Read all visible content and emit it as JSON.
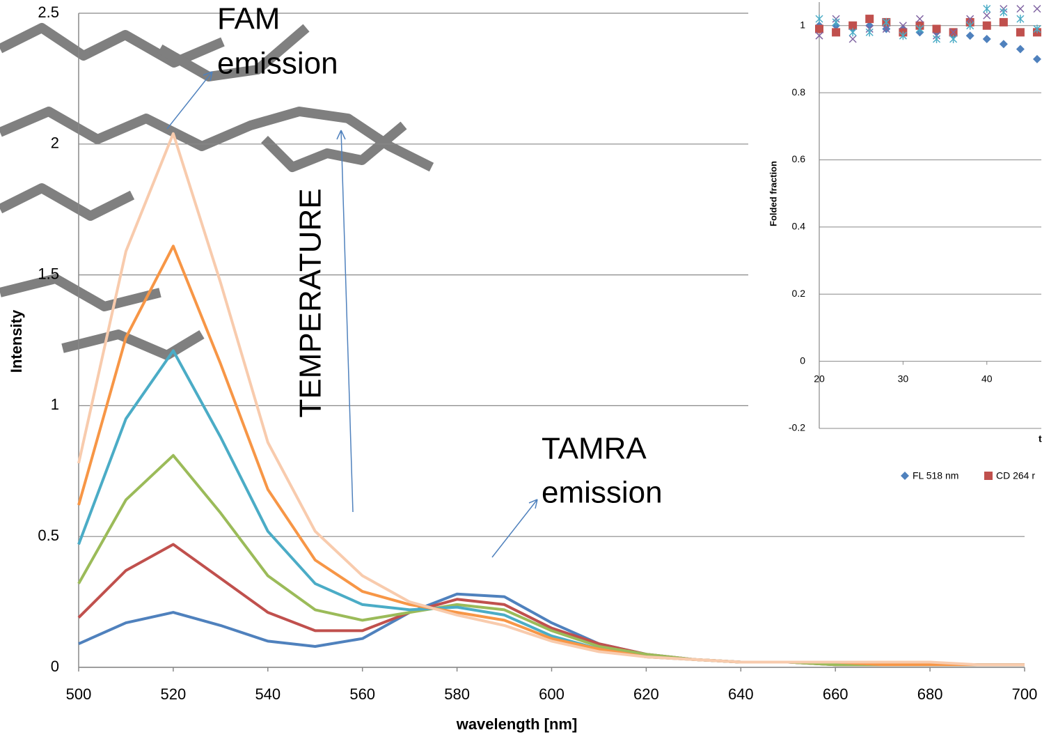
{
  "chart_data": [
    {
      "type": "line",
      "xlabel": "wavelength [nm]",
      "ylabel": "Intensity",
      "x": [
        500,
        510,
        520,
        530,
        540,
        550,
        560,
        570,
        580,
        590,
        600,
        610,
        620,
        630,
        640,
        650,
        660,
        670,
        680,
        690,
        700
      ],
      "series": [
        {
          "color": "#4f81bd",
          "values": [
            0.09,
            0.17,
            0.21,
            0.16,
            0.1,
            0.08,
            0.11,
            0.21,
            0.28,
            0.27,
            0.17,
            0.09,
            0.05,
            0.03,
            0.02,
            0.02,
            0.01,
            0.01,
            0.01,
            0.01,
            0.01
          ]
        },
        {
          "color": "#c0504d",
          "values": [
            0.19,
            0.37,
            0.47,
            0.34,
            0.21,
            0.14,
            0.14,
            0.21,
            0.26,
            0.24,
            0.15,
            0.09,
            0.05,
            0.03,
            0.02,
            0.02,
            0.01,
            0.01,
            0.01,
            0.01,
            0.01
          ]
        },
        {
          "color": "#9bbb59",
          "values": [
            0.32,
            0.64,
            0.81,
            0.59,
            0.35,
            0.22,
            0.18,
            0.21,
            0.24,
            0.22,
            0.14,
            0.08,
            0.05,
            0.03,
            0.02,
            0.02,
            0.01,
            0.01,
            0.01,
            0.01,
            0.01
          ]
        },
        {
          "color": "#4bacc6",
          "values": [
            0.47,
            0.95,
            1.21,
            0.88,
            0.52,
            0.32,
            0.24,
            0.22,
            0.23,
            0.2,
            0.12,
            0.07,
            0.04,
            0.03,
            0.02,
            0.02,
            0.02,
            0.01,
            0.01,
            0.01,
            0.01
          ]
        },
        {
          "color": "#f79646",
          "values": [
            0.62,
            1.26,
            1.61,
            1.16,
            0.68,
            0.41,
            0.29,
            0.24,
            0.21,
            0.18,
            0.11,
            0.07,
            0.04,
            0.03,
            0.02,
            0.02,
            0.02,
            0.01,
            0.01,
            0.01,
            0.01
          ]
        },
        {
          "color": "#f8cbad",
          "values": [
            0.78,
            1.59,
            2.04,
            1.47,
            0.86,
            0.52,
            0.35,
            0.25,
            0.2,
            0.16,
            0.1,
            0.06,
            0.04,
            0.03,
            0.02,
            0.02,
            0.02,
            0.02,
            0.02,
            0.01,
            0.01
          ]
        }
      ],
      "xlim": [
        500,
        700
      ],
      "xticks": [
        500,
        520,
        540,
        560,
        580,
        600,
        620,
        640,
        660,
        680,
        700
      ],
      "ylim": [
        0,
        2.5
      ],
      "yticks": [
        0,
        0.5,
        1,
        1.5,
        2,
        2.5
      ],
      "grid": true,
      "annotations": [
        [
          "FAM",
          "emission"
        ],
        [
          "TEMPERATURE"
        ],
        [
          "TAMRA",
          "emission"
        ]
      ]
    },
    {
      "type": "scatter",
      "xlabel": "t",
      "ylabel": "Folded fraction",
      "x": [
        20,
        22,
        24,
        26,
        28,
        30,
        32,
        34,
        36,
        38,
        40,
        42,
        44,
        46
      ],
      "series": [
        {
          "name": "FL 518 nm",
          "color": "#4f81bd",
          "marker": "diamond",
          "values": [
            1.0,
            1.0,
            0.99,
            1.0,
            0.99,
            0.99,
            0.98,
            0.98,
            0.97,
            0.97,
            0.96,
            0.945,
            0.93,
            0.9
          ]
        },
        {
          "name": "CD 264 r",
          "color": "#c0504d",
          "marker": "square",
          "values": [
            0.99,
            0.98,
            1.0,
            1.02,
            1.01,
            0.98,
            1.0,
            0.99,
            0.98,
            1.01,
            1.0,
            1.01,
            0.98,
            0.98
          ]
        },
        {
          "color": "#8064a2",
          "marker": "x",
          "values": [
            0.97,
            1.02,
            0.96,
            0.99,
            0.99,
            1.0,
            1.02,
            0.97,
            0.98,
            1.02,
            1.03,
            1.05,
            1.05,
            1.05
          ]
        },
        {
          "color": "#4bacc6",
          "marker": "asterisk",
          "values": [
            1.02,
            1.01,
            0.98,
            0.98,
            1.01,
            0.97,
            0.99,
            0.96,
            0.96,
            1.0,
            1.05,
            1.04,
            1.02,
            0.99
          ]
        }
      ],
      "xlim": [
        20,
        46.5
      ],
      "xticks": [
        20,
        30,
        40
      ],
      "ylim": [
        -0.2,
        1.07
      ],
      "yticks": [
        -0.2,
        0,
        0.2,
        0.4,
        0.6,
        0.8,
        1
      ],
      "grid": true
    }
  ]
}
